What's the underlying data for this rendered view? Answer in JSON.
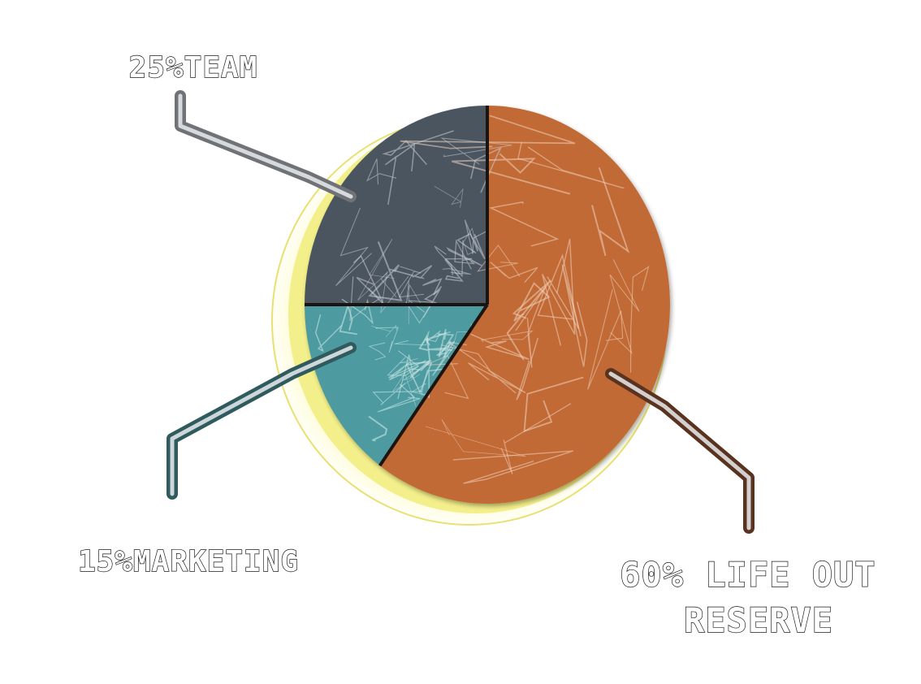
{
  "chart_data": {
    "type": "pie",
    "title": "",
    "slices": [
      {
        "label": "25%TEAM",
        "value": 25,
        "color": "#4c5560",
        "vein": "#c9cfd6"
      },
      {
        "label": "15%MARKETING",
        "value": 15,
        "color": "#4d9ba0",
        "vein": "#d6ecec"
      },
      {
        "label": "60% LIFE OUT RESERVE",
        "value": 60,
        "color": "#c26a36",
        "vein": "#f0d2be"
      }
    ],
    "label_lines": [
      [
        "25%TEAM"
      ],
      [
        "15%MARKETING"
      ],
      [
        "60% LIFE OUT",
        "RESERVE"
      ]
    ],
    "rim_color": "#f3ef8a",
    "leader_colors": [
      "#6f7378",
      "#2f5a5e",
      "#5a3320"
    ]
  }
}
